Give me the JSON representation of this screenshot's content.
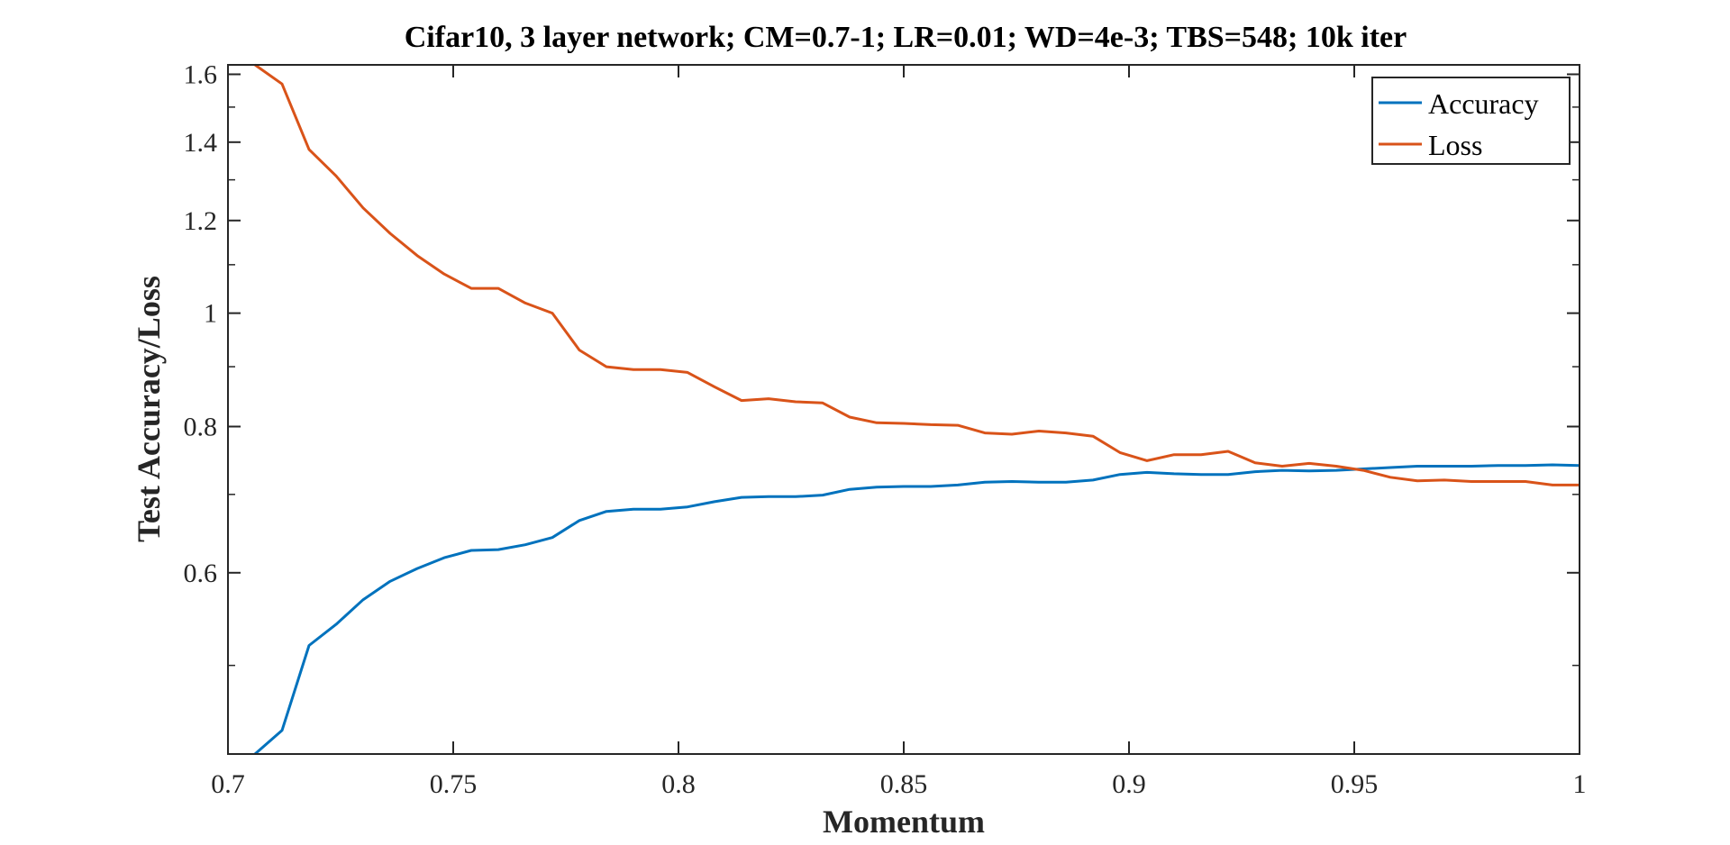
{
  "chart_data": {
    "type": "line",
    "title": "Cifar10, 3 layer network; CM=0.7-1; LR=0.01; WD=4e-3; TBS=548; 10k iter",
    "xlabel": "Momentum",
    "ylabel": "Test Accuracy/Loss",
    "xlim": [
      0.7,
      1.0
    ],
    "ylim": [
      0.42,
      1.63
    ],
    "yscale": "log",
    "xticks": [
      0.7,
      0.75,
      0.8,
      0.85,
      0.9,
      0.95,
      1
    ],
    "xtick_labels": [
      "0.7",
      "0.75",
      "0.8",
      "0.85",
      "0.9",
      "0.95",
      "1"
    ],
    "yticks": [
      0.6,
      0.8,
      1,
      1.2,
      1.4,
      1.6
    ],
    "ytick_labels": [
      "0.6",
      "0.8",
      "1",
      "1.2",
      "1.4",
      "1.6"
    ],
    "grid": false,
    "legend_position": "top-right",
    "x": [
      0.706,
      0.712,
      0.718,
      0.724,
      0.73,
      0.736,
      0.742,
      0.748,
      0.754,
      0.76,
      0.766,
      0.772,
      0.778,
      0.784,
      0.79,
      0.796,
      0.802,
      0.808,
      0.814,
      0.82,
      0.826,
      0.832,
      0.838,
      0.844,
      0.85,
      0.856,
      0.862,
      0.868,
      0.874,
      0.88,
      0.886,
      0.892,
      0.898,
      0.904,
      0.91,
      0.916,
      0.922,
      0.928,
      0.934,
      0.94,
      0.946,
      0.952,
      0.958,
      0.964,
      0.97,
      0.976,
      0.982,
      0.988,
      0.994,
      1.0
    ],
    "series": [
      {
        "name": "Accuracy",
        "color": "#0072BD",
        "values": [
          0.42,
          0.44,
          0.52,
          0.542,
          0.569,
          0.59,
          0.605,
          0.618,
          0.627,
          0.628,
          0.634,
          0.643,
          0.665,
          0.677,
          0.68,
          0.68,
          0.683,
          0.69,
          0.696,
          0.697,
          0.697,
          0.699,
          0.707,
          0.71,
          0.711,
          0.711,
          0.713,
          0.717,
          0.718,
          0.717,
          0.717,
          0.72,
          0.728,
          0.731,
          0.729,
          0.728,
          0.728,
          0.732,
          0.734,
          0.733,
          0.734,
          0.736,
          0.738,
          0.74,
          0.74,
          0.74,
          0.741,
          0.741,
          0.742,
          0.741
        ]
      },
      {
        "name": "Loss",
        "color": "#D95319",
        "values": [
          1.63,
          1.57,
          1.38,
          1.31,
          1.23,
          1.17,
          1.12,
          1.08,
          1.05,
          1.05,
          1.02,
          1.0,
          0.93,
          0.9,
          0.895,
          0.895,
          0.89,
          0.865,
          0.842,
          0.845,
          0.84,
          0.838,
          0.815,
          0.806,
          0.805,
          0.803,
          0.802,
          0.79,
          0.788,
          0.793,
          0.79,
          0.785,
          0.76,
          0.748,
          0.757,
          0.757,
          0.762,
          0.745,
          0.74,
          0.744,
          0.74,
          0.734,
          0.724,
          0.719,
          0.72,
          0.718,
          0.718,
          0.718,
          0.713,
          0.713
        ]
      }
    ]
  }
}
